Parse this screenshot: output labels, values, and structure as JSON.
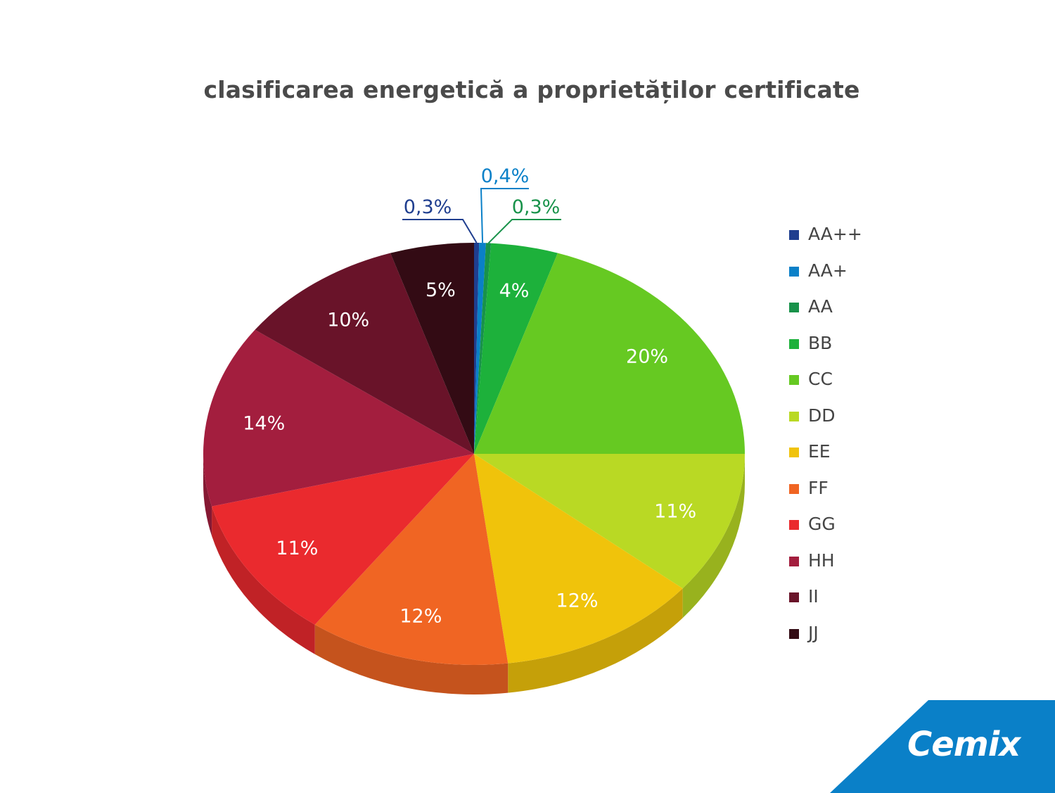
{
  "chart_data": {
    "type": "pie",
    "title": "clasificarea energetică a proprietăților certificate",
    "legend_position": "right",
    "slices": [
      {
        "name": "AA++",
        "value": 0.3,
        "label": "0,3%",
        "color": "#1f3e8f",
        "label_style": "callout"
      },
      {
        "name": "AA+",
        "value": 0.4,
        "label": "0,4%",
        "color": "#0a80c8",
        "label_style": "callout"
      },
      {
        "name": "AA",
        "value": 0.3,
        "label": "0,3%",
        "color": "#18924a",
        "label_style": "callout"
      },
      {
        "name": "BB",
        "value": 4,
        "label": "4%",
        "color": "#1db13b",
        "label_style": "inside"
      },
      {
        "name": "CC",
        "value": 20,
        "label": "20%",
        "color": "#66c922",
        "label_style": "inside"
      },
      {
        "name": "DD",
        "value": 11,
        "label": "11%",
        "color": "#b9d924",
        "label_style": "inside"
      },
      {
        "name": "EE",
        "value": 12,
        "label": "12%",
        "color": "#f0c30b",
        "label_style": "inside"
      },
      {
        "name": "FF",
        "value": 12,
        "label": "12%",
        "color": "#f06523",
        "label_style": "inside"
      },
      {
        "name": "GG",
        "value": 11,
        "label": "11%",
        "color": "#ea2a2e",
        "label_style": "inside"
      },
      {
        "name": "HH",
        "value": 14,
        "label": "14%",
        "color": "#a31e3e",
        "label_style": "inside"
      },
      {
        "name": "II",
        "value": 10,
        "label": "10%",
        "color": "#691329",
        "label_style": "inside"
      },
      {
        "name": "JJ",
        "value": 5,
        "label": "5%",
        "color": "#330b14",
        "label_style": "inside"
      }
    ]
  },
  "brand": {
    "logo_text": "Cemix",
    "color": "#0a80c8"
  }
}
